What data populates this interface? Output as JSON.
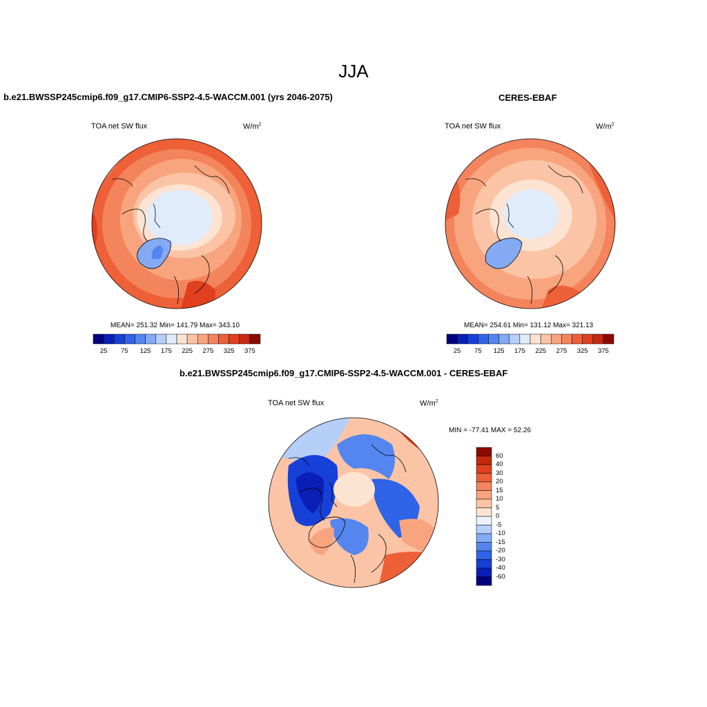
{
  "page_title": "JJA",
  "panels": {
    "left": {
      "title": "b.e21.BWSSP245cmip6.f09_g17.CMIP6-SSP2-4.5-WACCM.001 (yrs 2046-2075)",
      "variable": "TOA net SW flux",
      "units_base": "W/m",
      "units_exp": "2",
      "stats": "MEAN= 251.32  Min= 141.79  Max= 343.10"
    },
    "right": {
      "title": "CERES-EBAF",
      "variable": "TOA net SW flux",
      "units_base": "W/m",
      "units_exp": "2",
      "stats": "MEAN= 254.61  Min= 131.12  Max= 321.13"
    },
    "diff": {
      "title": "b.e21.BWSSP245cmip6.f09_g17.CMIP6-SSP2-4.5-WACCM.001 - CERES-EBAF",
      "variable": "TOA net SW flux",
      "units_base": "W/m",
      "units_exp": "2",
      "stats": "MIN = -77.41 MAX =  52.26"
    }
  },
  "colorbars": {
    "horizontal": {
      "tick_labels": [
        "25",
        "75",
        "125",
        "175",
        "225",
        "275",
        "325",
        "375"
      ],
      "colors": [
        "#00007f",
        "#0a1fb5",
        "#1640d8",
        "#2f63e8",
        "#5586f0",
        "#84aaf4",
        "#b5cff8",
        "#e1ecfb",
        "#fde3d2",
        "#fbc4a6",
        "#f8a57f",
        "#f4845c",
        "#ee6038",
        "#e0401e",
        "#c42a0e",
        "#8b0a00"
      ]
    },
    "vertical": {
      "labels": [
        "60",
        "40",
        "30",
        "20",
        "15",
        "10",
        "5",
        "0",
        "-5",
        "-10",
        "-15",
        "-20",
        "-30",
        "-40",
        "-60"
      ],
      "colors": [
        "#8b0a00",
        "#c42a0e",
        "#e0401e",
        "#ee6038",
        "#f4845c",
        "#f8a57f",
        "#fbc4a6",
        "#fde3d2",
        "#eef3fb",
        "#b5cff8",
        "#84aaf4",
        "#5586f0",
        "#2f63e8",
        "#1640d8",
        "#0a1fb5",
        "#00007f"
      ]
    }
  }
}
